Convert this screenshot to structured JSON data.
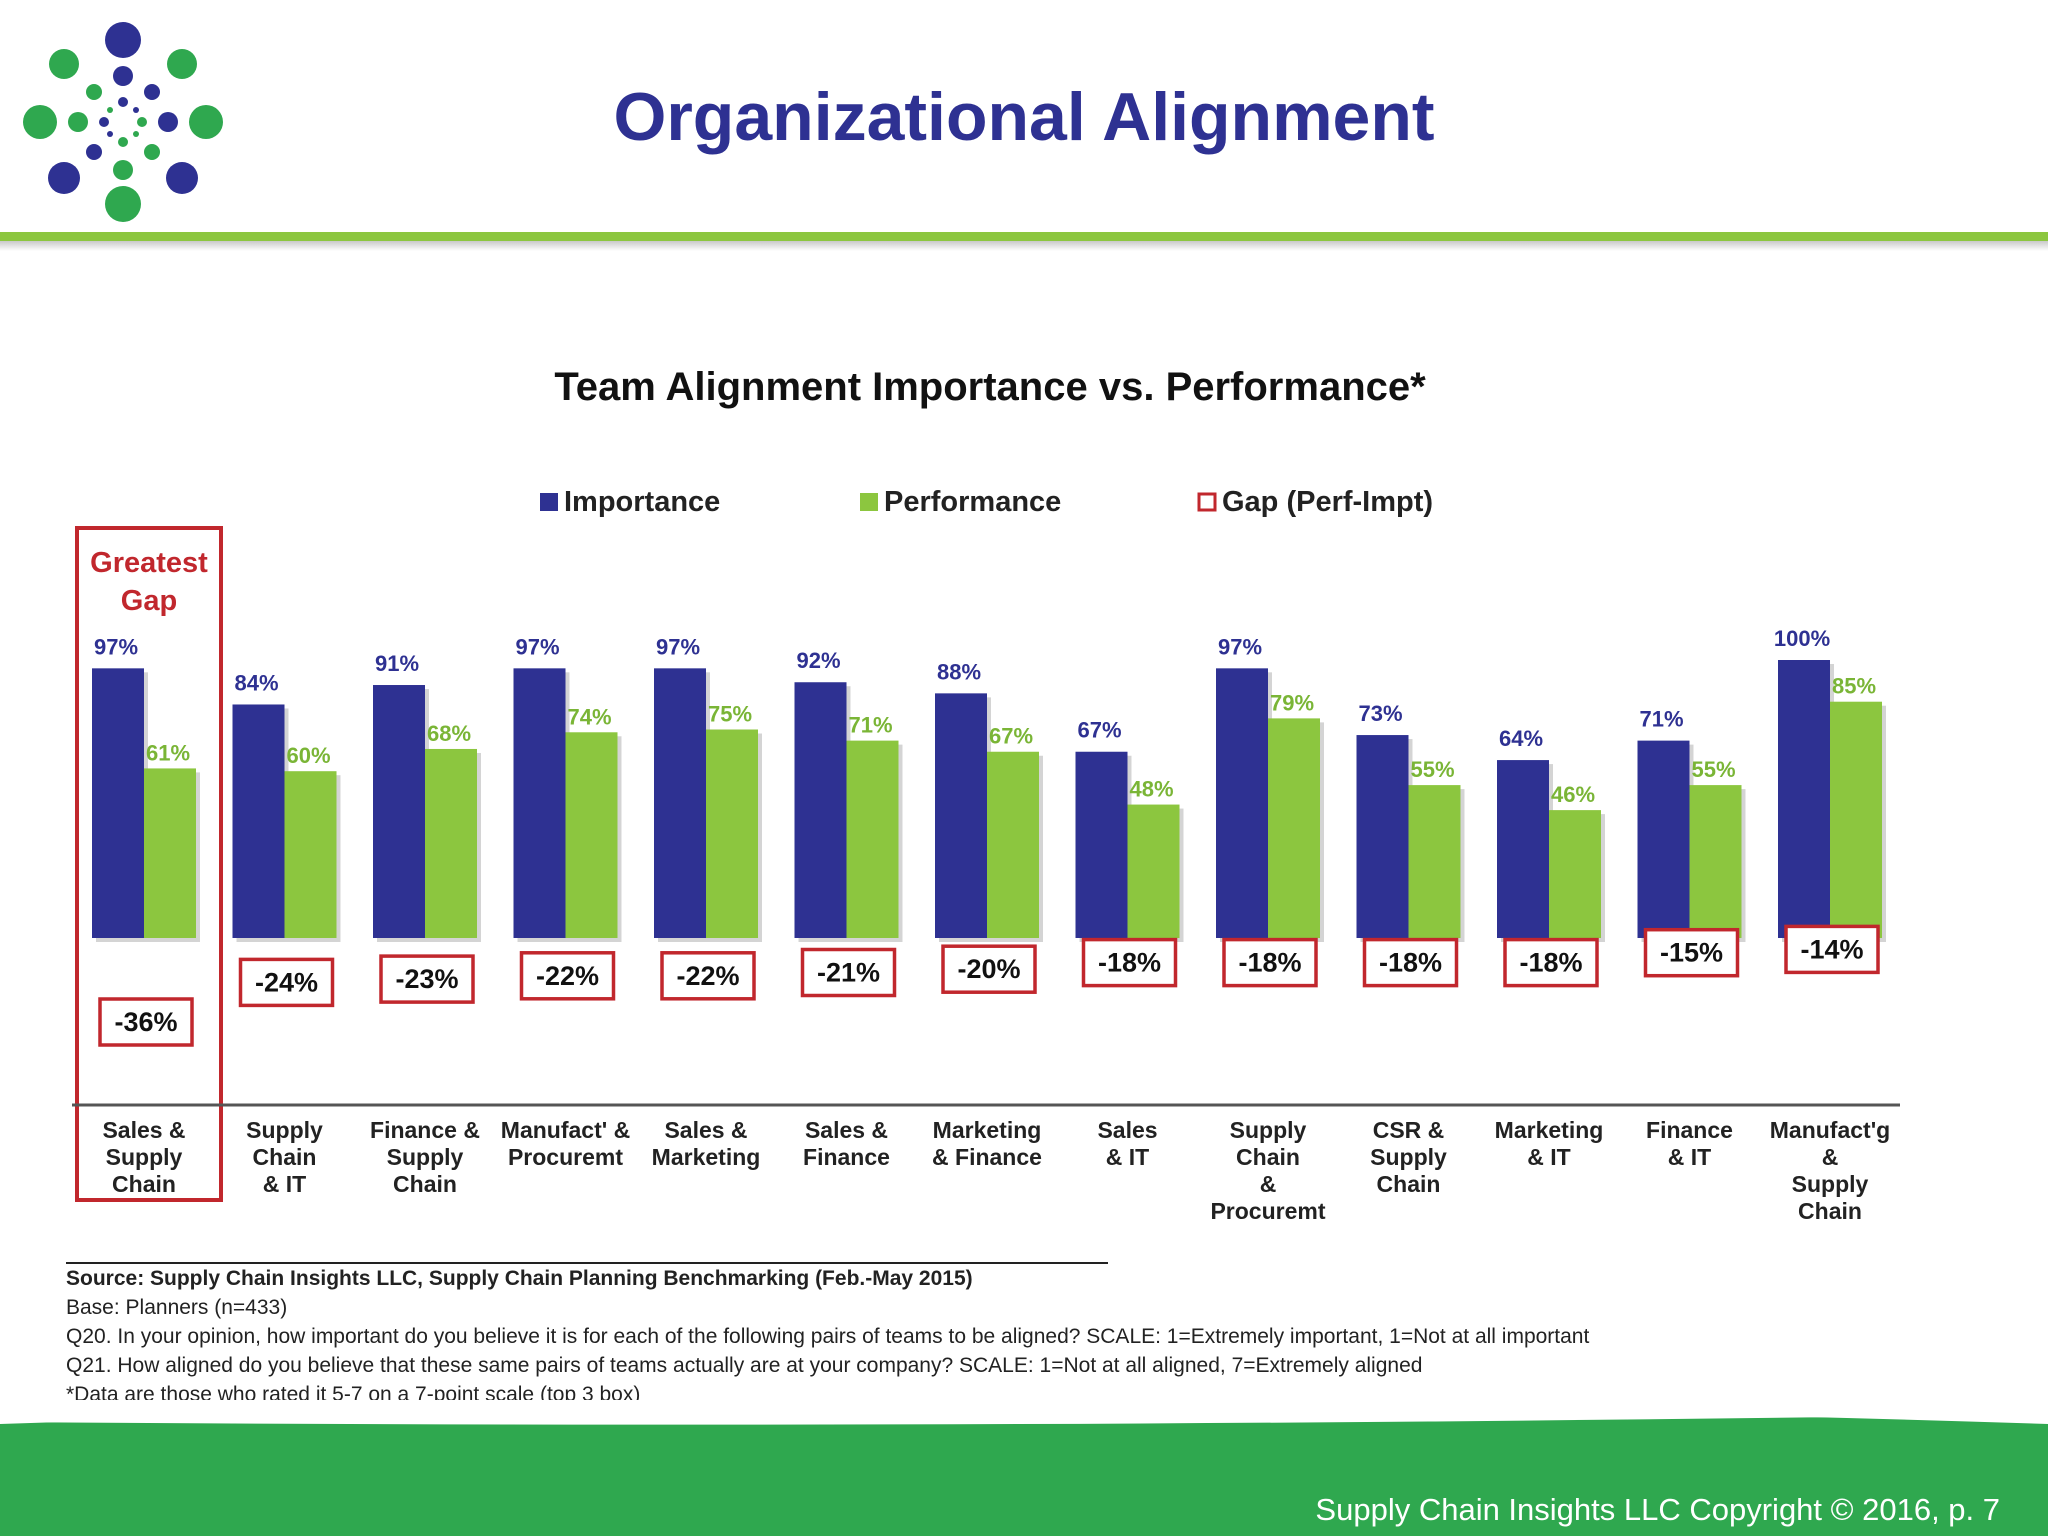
{
  "header": {
    "title": "Organizational Alignment"
  },
  "footer": {
    "copyright": "Supply Chain Insights LLC Copyright © 2016, p. 7"
  },
  "colors": {
    "importance": "#2e3192",
    "performance": "#8cc63f",
    "gap_border": "#c1272d",
    "title_blue": "#2e3192",
    "band_green": "#2fa84f"
  },
  "chart_data": {
    "type": "bar",
    "title": "Team Alignment  Importance  vs. Performance*",
    "legend": [
      "Importance",
      "Performance",
      "Gap (Perf-Impt)"
    ],
    "legend_position": "top",
    "highlight": {
      "index": 0,
      "label_line1": "Greatest",
      "label_line2": "Gap"
    },
    "ylim": [
      0,
      100
    ],
    "grid": false,
    "categories": [
      [
        "Sales &",
        "Supply",
        "Chain"
      ],
      [
        "Supply",
        "Chain",
        "& IT"
      ],
      [
        "Finance &",
        "Supply",
        "Chain"
      ],
      [
        "Manufact' &",
        "Procuremt"
      ],
      [
        "Sales &",
        "Marketing"
      ],
      [
        "Sales &",
        "Finance"
      ],
      [
        "Marketing",
        "& Finance"
      ],
      [
        "Sales",
        "& IT"
      ],
      [
        "Supply",
        "Chain",
        "&",
        "Procuremt"
      ],
      [
        "CSR &",
        "Supply",
        "Chain"
      ],
      [
        "Marketing",
        "& IT"
      ],
      [
        "Finance",
        "& IT"
      ],
      [
        "Manufact'g",
        "&",
        "Supply",
        "Chain"
      ]
    ],
    "series": [
      {
        "name": "Importance",
        "values": [
          97,
          84,
          91,
          97,
          97,
          92,
          88,
          67,
          97,
          73,
          64,
          71,
          100
        ],
        "labels": [
          "97%",
          "84%",
          "91%",
          "97%",
          "97%",
          "92%",
          "88%",
          "67%",
          "97%",
          "73%",
          "64%",
          "71%",
          "100%"
        ]
      },
      {
        "name": "Performance",
        "values": [
          61,
          60,
          68,
          74,
          75,
          71,
          67,
          48,
          79,
          55,
          46,
          55,
          85
        ],
        "labels": [
          "61%",
          "60%",
          "68%",
          "74%",
          "75%",
          "71%",
          "67%",
          "48%",
          "79%",
          "55%",
          "46%",
          "55%",
          "85%"
        ]
      },
      {
        "name": "Gap (Perf-Impt)",
        "values": [
          -36,
          -24,
          -23,
          -22,
          -22,
          -21,
          -20,
          -18,
          -18,
          -18,
          -18,
          -15,
          -14
        ],
        "labels": [
          "-36%",
          "-24%",
          "-23%",
          "-22%",
          "-22%",
          "-21%",
          "-20%",
          "-18%",
          "-18%",
          "-18%",
          "-18%",
          "-15%",
          "-14%"
        ]
      }
    ]
  },
  "source": {
    "line1": "Source:  Supply Chain Insights LLC, Supply Chain Planning Benchmarking (Feb.-May 2015)",
    "line2": "Base: Planners (n=433)",
    "line3": "Q20. In your opinion, how important do you believe it is for each of the following pairs of teams to be aligned?  SCALE: 1=Extremely important, 1=Not at all important",
    "line4": "Q21. How aligned do you believe that these same pairs of teams actually are at your company?  SCALE: 1=Not at all aligned, 7=Extremely aligned",
    "line5": "*Data are those who rated it 5-7 on a 7-point scale (top 3 box)"
  }
}
